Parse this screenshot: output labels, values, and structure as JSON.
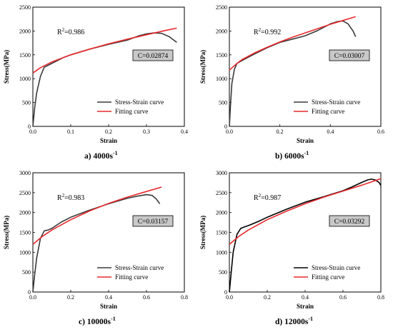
{
  "chart_data": [
    {
      "type": "line",
      "caption": {
        "text": "a) 4000s",
        "sup": "-1"
      },
      "xlabel": "Strain",
      "ylabel": "Stress(MPa)",
      "xlim": [
        0,
        0.4
      ],
      "ylim": [
        0,
        2500
      ],
      "x_ticks": [
        "0.0",
        "0.1",
        "0.2",
        "0.3",
        "0.4"
      ],
      "y_ticks": [
        "0",
        "500",
        "1000",
        "1500",
        "2000",
        "2500"
      ],
      "r2": {
        "prefix": "R",
        "sup": "2",
        "value": "=0.986"
      },
      "c_label": "C=0.02874",
      "legend_position": "bottom-right",
      "series": [
        {
          "name": "Stress-Strain curve",
          "color": "#3a3a3a",
          "x": [
            0,
            0.005,
            0.01,
            0.02,
            0.03,
            0.04,
            0.06,
            0.08,
            0.1,
            0.15,
            0.2,
            0.25,
            0.28,
            0.3,
            0.32,
            0.34,
            0.36,
            0.38
          ],
          "y": [
            0,
            400,
            700,
            1050,
            1240,
            1280,
            1360,
            1440,
            1500,
            1620,
            1720,
            1810,
            1900,
            1940,
            1960,
            1950,
            1880,
            1760
          ]
        },
        {
          "name": "Fitting curve",
          "color": "#e8282b",
          "x": [
            0,
            0.02,
            0.05,
            0.1,
            0.15,
            0.2,
            0.25,
            0.3,
            0.35,
            0.38
          ],
          "y": [
            1120,
            1230,
            1350,
            1500,
            1620,
            1730,
            1830,
            1920,
            2010,
            2060
          ]
        }
      ]
    },
    {
      "type": "line",
      "caption": {
        "text": "b) 6000s",
        "sup": "-1"
      },
      "xlabel": "Strain",
      "ylabel": "Stress(MPa)",
      "xlim": [
        0,
        0.6
      ],
      "ylim": [
        0,
        2500
      ],
      "x_ticks": [
        "0.0",
        "0.2",
        "0.4",
        "0.6"
      ],
      "y_ticks": [
        "0",
        "500",
        "1000",
        "1500",
        "2000",
        "2500"
      ],
      "r2": {
        "prefix": "R",
        "sup": "2",
        "value": "=0.992"
      },
      "c_label": "C=0.03007",
      "legend_position": "bottom-right",
      "series": [
        {
          "name": "Stress-Strain curve",
          "color": "#3a3a3a",
          "x": [
            0,
            0.005,
            0.01,
            0.02,
            0.03,
            0.05,
            0.1,
            0.15,
            0.2,
            0.25,
            0.3,
            0.35,
            0.4,
            0.43,
            0.45,
            0.47,
            0.49,
            0.5
          ],
          "y": [
            0,
            500,
            900,
            1200,
            1320,
            1380,
            1520,
            1650,
            1760,
            1830,
            1900,
            2010,
            2150,
            2200,
            2210,
            2150,
            2000,
            1880
          ]
        },
        {
          "name": "Fitting curve",
          "color": "#e8282b",
          "x": [
            0,
            0.03,
            0.05,
            0.1,
            0.15,
            0.2,
            0.25,
            0.3,
            0.35,
            0.4,
            0.45,
            0.5
          ],
          "y": [
            1180,
            1320,
            1400,
            1540,
            1660,
            1770,
            1870,
            1960,
            2050,
            2140,
            2220,
            2300
          ]
        }
      ]
    },
    {
      "type": "line",
      "caption": {
        "text": "c) 10000s",
        "sup": "-1"
      },
      "xlabel": "Strain",
      "ylabel": "Stress(MPa)",
      "xlim": [
        0,
        0.8
      ],
      "ylim": [
        0,
        3000
      ],
      "x_ticks": [
        "0.0",
        "0.2",
        "0.4",
        "0.6",
        "0.8"
      ],
      "y_ticks": [
        "0",
        "500",
        "1000",
        "1500",
        "2000",
        "2500",
        "3000"
      ],
      "r2": {
        "prefix": "R",
        "sup": "2",
        "value": "=0.983"
      },
      "c_label": "C=0.03157",
      "legend_position": "bottom-right",
      "series": [
        {
          "name": "Stress-Strain curve",
          "color": "#3a3a3a",
          "x": [
            0,
            0.01,
            0.02,
            0.04,
            0.06,
            0.08,
            0.1,
            0.15,
            0.2,
            0.3,
            0.4,
            0.5,
            0.55,
            0.6,
            0.63,
            0.65,
            0.67
          ],
          "y": [
            0,
            450,
            850,
            1350,
            1540,
            1560,
            1600,
            1760,
            1880,
            2060,
            2220,
            2360,
            2410,
            2450,
            2430,
            2350,
            2220
          ]
        },
        {
          "name": "Fitting curve",
          "color": "#e8282b",
          "x": [
            0,
            0.05,
            0.1,
            0.2,
            0.3,
            0.4,
            0.5,
            0.6,
            0.68
          ],
          "y": [
            1200,
            1400,
            1560,
            1820,
            2040,
            2230,
            2390,
            2530,
            2640
          ]
        }
      ]
    },
    {
      "type": "line",
      "caption": {
        "text": "d) 12000s",
        "sup": "-1"
      },
      "xlabel": "Strain",
      "ylabel": "Stress(MPa)",
      "xlim": [
        0,
        0.8
      ],
      "ylim": [
        0,
        3000
      ],
      "x_ticks": [
        "0.0",
        "0.2",
        "0.4",
        "0.6",
        "0.8"
      ],
      "y_ticks": [
        "0",
        "500",
        "1000",
        "1500",
        "2000",
        "2500",
        "3000"
      ],
      "r2": {
        "prefix": "R",
        "sup": "2",
        "value": "=0.987"
      },
      "c_label": "C=0.03292",
      "legend_position": "bottom-right",
      "series": [
        {
          "name": "Stress-Strain curve",
          "color": "#000000",
          "x": [
            0,
            0.01,
            0.02,
            0.04,
            0.06,
            0.08,
            0.1,
            0.15,
            0.2,
            0.3,
            0.4,
            0.5,
            0.6,
            0.65,
            0.7,
            0.73,
            0.75,
            0.77,
            0.79,
            0.8
          ],
          "y": [
            0,
            500,
            1000,
            1450,
            1600,
            1640,
            1670,
            1770,
            1880,
            2080,
            2260,
            2400,
            2550,
            2650,
            2760,
            2820,
            2840,
            2820,
            2760,
            2680
          ]
        },
        {
          "name": "Fitting curve",
          "color": "#e8282b",
          "x": [
            0,
            0.05,
            0.1,
            0.2,
            0.3,
            0.4,
            0.5,
            0.6,
            0.7,
            0.8
          ],
          "y": [
            1200,
            1400,
            1560,
            1820,
            2030,
            2220,
            2390,
            2540,
            2690,
            2850
          ]
        }
      ]
    }
  ]
}
